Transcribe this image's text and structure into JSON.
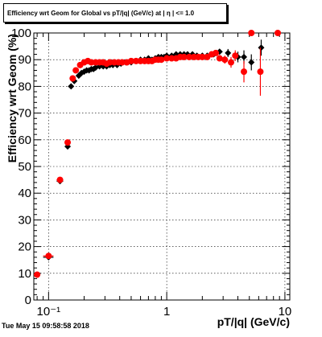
{
  "title": "Efficiency wrt Geom for Global vs pT/|q| (GeV/c) at | η | <= 1.0",
  "timestamp": "Tue May 15 09:58:58 2018",
  "chart_data": {
    "type": "scatter",
    "title": "Efficiency wrt Geom for Global vs pT/|q| (GeV/c) at | η | <= 1.0",
    "xlabel": "pT/|q| (GeV/c)",
    "ylabel": "Efficiency wrt Geom (%)",
    "xscale": "log",
    "xlim": [
      0.075,
      11
    ],
    "ylim": [
      0,
      100
    ],
    "grid": true,
    "x_tick_labels": [
      "10⁻¹",
      "1",
      "10"
    ],
    "y_tick_labels": [
      "0",
      "10",
      "20",
      "30",
      "40",
      "50",
      "60",
      "70",
      "80",
      "90",
      "100"
    ],
    "series": [
      {
        "color": "#000000",
        "marker": "diamond",
        "points": [
          {
            "x": 0.08,
            "y": 9.5,
            "ex": 0.005
          },
          {
            "x": 0.1,
            "y": 16,
            "ex": 0.01
          },
          {
            "x": 0.125,
            "y": 44.5,
            "ex": 0.008
          },
          {
            "x": 0.145,
            "y": 57.5,
            "ex": 0.004
          },
          {
            "x": 0.155,
            "y": 80,
            "ex": 0.003
          },
          {
            "x": 0.165,
            "y": 82
          },
          {
            "x": 0.18,
            "y": 84
          },
          {
            "x": 0.19,
            "y": 85
          },
          {
            "x": 0.2,
            "y": 85.5
          },
          {
            "x": 0.21,
            "y": 86
          },
          {
            "x": 0.22,
            "y": 86
          },
          {
            "x": 0.23,
            "y": 86.5
          },
          {
            "x": 0.24,
            "y": 86.5
          },
          {
            "x": 0.25,
            "y": 87
          },
          {
            "x": 0.27,
            "y": 87.5
          },
          {
            "x": 0.29,
            "y": 87.5
          },
          {
            "x": 0.31,
            "y": 87.5
          },
          {
            "x": 0.33,
            "y": 88
          },
          {
            "x": 0.35,
            "y": 88
          },
          {
            "x": 0.38,
            "y": 88
          },
          {
            "x": 0.41,
            "y": 88.5
          },
          {
            "x": 0.45,
            "y": 89
          },
          {
            "x": 0.5,
            "y": 89
          },
          {
            "x": 0.55,
            "y": 89.5
          },
          {
            "x": 0.6,
            "y": 90
          },
          {
            "x": 0.65,
            "y": 90
          },
          {
            "x": 0.7,
            "y": 90.5
          },
          {
            "x": 0.75,
            "y": 90
          },
          {
            "x": 0.8,
            "y": 90.5
          },
          {
            "x": 0.85,
            "y": 91
          },
          {
            "x": 0.9,
            "y": 91
          },
          {
            "x": 0.95,
            "y": 91
          },
          {
            "x": 1.0,
            "y": 91.5
          },
          {
            "x": 1.1,
            "y": 91.5
          },
          {
            "x": 1.2,
            "y": 92
          },
          {
            "x": 1.3,
            "y": 92
          },
          {
            "x": 1.4,
            "y": 92
          },
          {
            "x": 1.5,
            "y": 92
          },
          {
            "x": 1.65,
            "y": 92
          },
          {
            "x": 1.8,
            "y": 91.5
          },
          {
            "x": 2.0,
            "y": 91.5
          },
          {
            "x": 2.2,
            "y": 91.5
          },
          {
            "x": 2.5,
            "y": 92
          },
          {
            "x": 2.8,
            "y": 93
          },
          {
            "x": 3.3,
            "y": 92.5,
            "ey": 1.5
          },
          {
            "x": 4.0,
            "y": 91,
            "ey": 2
          },
          {
            "x": 4.5,
            "y": 91,
            "ey": 2.5
          },
          {
            "x": 5.2,
            "y": 89,
            "ey": 3
          },
          {
            "x": 6.3,
            "y": 94.5,
            "ey": 3
          }
        ]
      },
      {
        "color": "#ff0000",
        "marker": "circle",
        "points": [
          {
            "x": 0.08,
            "y": 9.5,
            "ex": 0.005
          },
          {
            "x": 0.1,
            "y": 16.5,
            "ex": 0.01
          },
          {
            "x": 0.125,
            "y": 45,
            "ex": 0.008
          },
          {
            "x": 0.145,
            "y": 59,
            "ex": 0.004
          },
          {
            "x": 0.16,
            "y": 83
          },
          {
            "x": 0.17,
            "y": 86
          },
          {
            "x": 0.185,
            "y": 88
          },
          {
            "x": 0.2,
            "y": 89
          },
          {
            "x": 0.215,
            "y": 89.5
          },
          {
            "x": 0.23,
            "y": 89
          },
          {
            "x": 0.25,
            "y": 89
          },
          {
            "x": 0.27,
            "y": 89
          },
          {
            "x": 0.29,
            "y": 89
          },
          {
            "x": 0.31,
            "y": 88.5
          },
          {
            "x": 0.33,
            "y": 89
          },
          {
            "x": 0.36,
            "y": 89
          },
          {
            "x": 0.39,
            "y": 89
          },
          {
            "x": 0.42,
            "y": 89
          },
          {
            "x": 0.46,
            "y": 89
          },
          {
            "x": 0.5,
            "y": 89.5
          },
          {
            "x": 0.55,
            "y": 89.5
          },
          {
            "x": 0.6,
            "y": 89.5
          },
          {
            "x": 0.65,
            "y": 89.5
          },
          {
            "x": 0.7,
            "y": 89.5
          },
          {
            "x": 0.75,
            "y": 89.5
          },
          {
            "x": 0.8,
            "y": 90
          },
          {
            "x": 0.85,
            "y": 90
          },
          {
            "x": 0.9,
            "y": 90
          },
          {
            "x": 1.0,
            "y": 90.5
          },
          {
            "x": 1.1,
            "y": 90.5
          },
          {
            "x": 1.2,
            "y": 90.5
          },
          {
            "x": 1.3,
            "y": 91
          },
          {
            "x": 1.4,
            "y": 91
          },
          {
            "x": 1.55,
            "y": 91
          },
          {
            "x": 1.7,
            "y": 91
          },
          {
            "x": 1.85,
            "y": 91
          },
          {
            "x": 2.0,
            "y": 91
          },
          {
            "x": 2.2,
            "y": 91
          },
          {
            "x": 2.4,
            "y": 92
          },
          {
            "x": 2.6,
            "y": 92.5
          },
          {
            "x": 2.8,
            "y": 90.5
          },
          {
            "x": 3.1,
            "y": 90,
            "ey": 1.5
          },
          {
            "x": 3.5,
            "y": 89,
            "ey": 2
          },
          {
            "x": 3.8,
            "y": 91.5,
            "ey": 2
          },
          {
            "x": 4.5,
            "y": 85.5,
            "ey": 4
          },
          {
            "x": 5.2,
            "y": 100
          },
          {
            "x": 6.2,
            "y": 85.5,
            "ey": 9
          },
          {
            "x": 8.7,
            "y": 100
          }
        ]
      }
    ]
  }
}
